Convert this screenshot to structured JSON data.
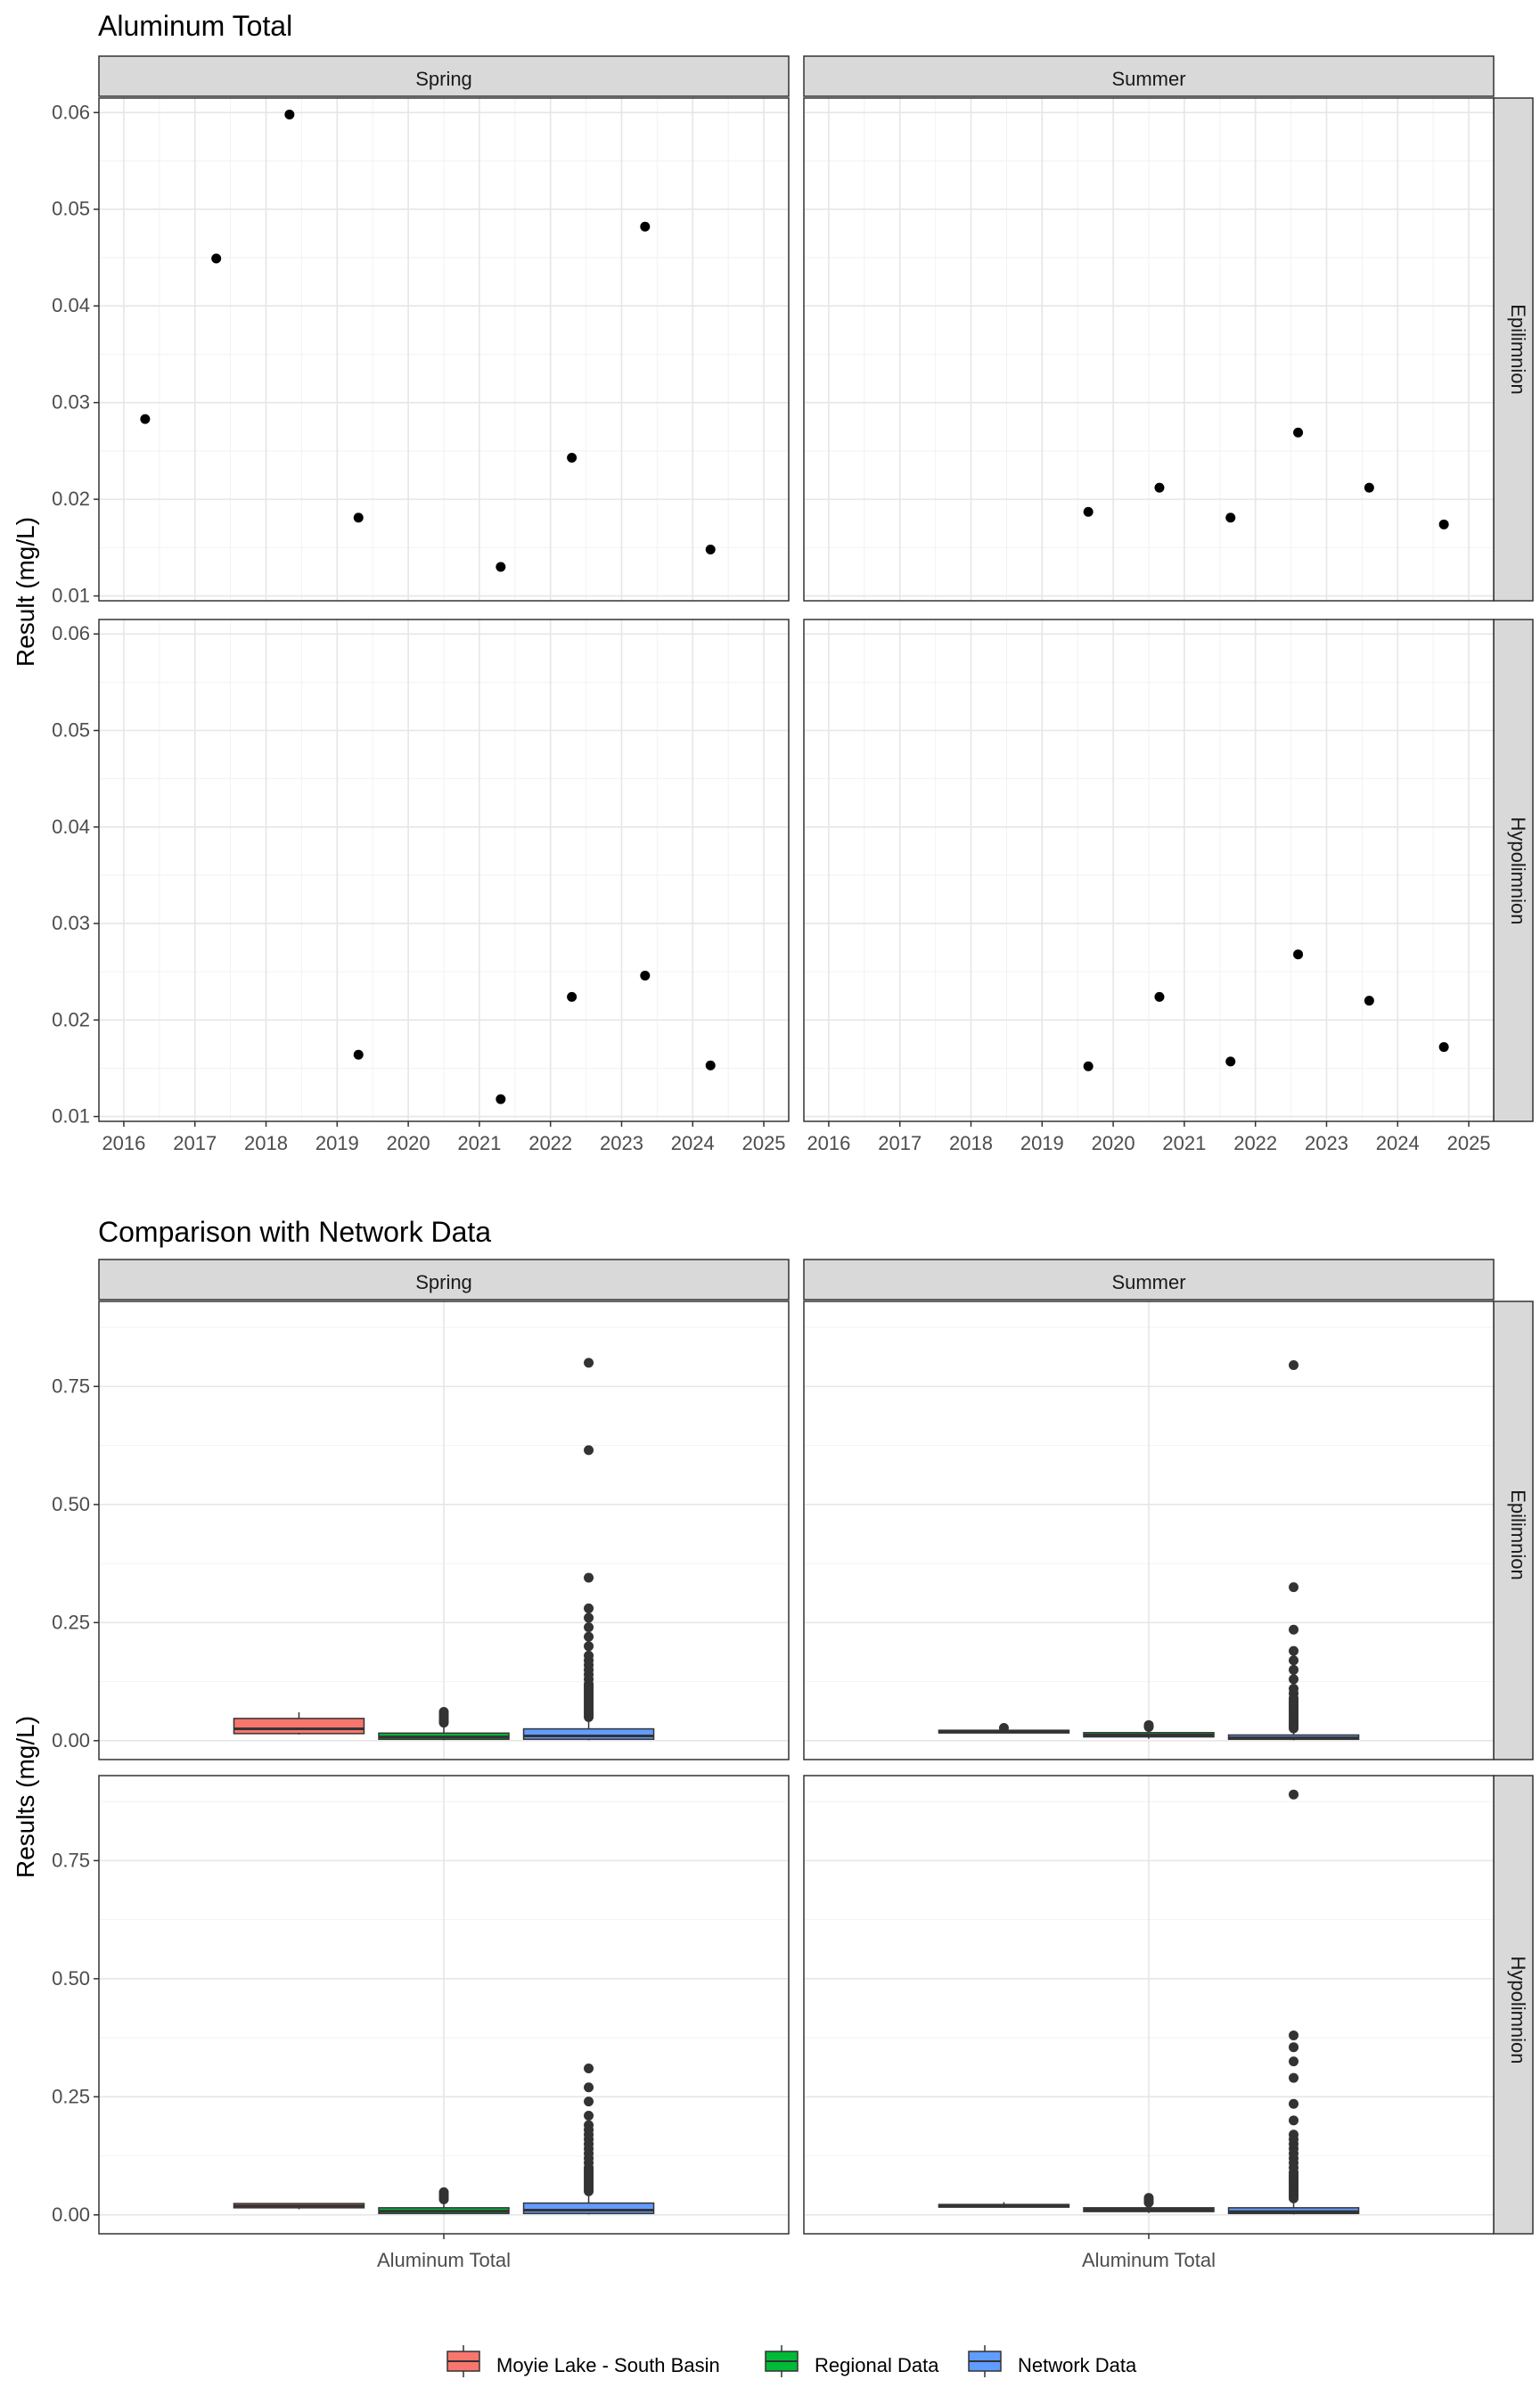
{
  "chart_data": [
    {
      "type": "scatter",
      "title": "Aluminum Total",
      "ylabel": "Result (mg/L)",
      "xlabel": "",
      "ylim": [
        0.0095,
        0.0615
      ],
      "xlim": [
        2015.65,
        2025.35
      ],
      "x_ticks": [
        "2016",
        "2017",
        "2018",
        "2019",
        "2020",
        "2021",
        "2022",
        "2023",
        "2024",
        "2025"
      ],
      "y_ticks": [
        "0.01",
        "0.02",
        "0.03",
        "0.04",
        "0.05",
        "0.06"
      ],
      "columns": [
        "Spring",
        "Summer"
      ],
      "rows": [
        "Epilimnion",
        "Hypolimnion"
      ],
      "grid": true,
      "panels": {
        "Spring": {
          "Epilimnion": [
            [
              2016.3,
              0.0283
            ],
            [
              2017.3,
              0.0449
            ],
            [
              2018.33,
              0.0598
            ],
            [
              2019.3,
              0.0181
            ],
            [
              2021.3,
              0.013
            ],
            [
              2022.3,
              0.0243
            ],
            [
              2023.33,
              0.0482
            ],
            [
              2024.25,
              0.0148
            ]
          ],
          "Hypolimnion": [
            [
              2019.3,
              0.0164
            ],
            [
              2021.3,
              0.0118
            ],
            [
              2022.3,
              0.0224
            ],
            [
              2023.33,
              0.0246
            ],
            [
              2024.25,
              0.0153
            ]
          ]
        },
        "Summer": {
          "Epilimnion": [
            [
              2019.65,
              0.0187
            ],
            [
              2020.65,
              0.0212
            ],
            [
              2021.65,
              0.0181
            ],
            [
              2022.6,
              0.0269
            ],
            [
              2023.6,
              0.0212
            ],
            [
              2024.65,
              0.0174
            ]
          ],
          "Hypolimnion": [
            [
              2019.65,
              0.0152
            ],
            [
              2020.65,
              0.0224
            ],
            [
              2021.65,
              0.0157
            ],
            [
              2022.6,
              0.0268
            ],
            [
              2023.6,
              0.022
            ],
            [
              2024.65,
              0.0172
            ]
          ]
        }
      }
    },
    {
      "type": "box",
      "title": "Comparison with Network Data",
      "ylabel": "Results (mg/L)",
      "category": "Aluminum Total",
      "ylim": [
        -0.04,
        0.93
      ],
      "y_ticks": [
        "0.00",
        "0.25",
        "0.50",
        "0.75"
      ],
      "columns": [
        "Spring",
        "Summer"
      ],
      "rows": [
        "Epilimnion",
        "Hypolimnion"
      ],
      "grid": true,
      "legend_position": "bottom",
      "series": [
        {
          "name": "Moyie Lake - South Basin",
          "color": "#F8766D"
        },
        {
          "name": "Regional Data",
          "color": "#00BA38"
        },
        {
          "name": "Network Data",
          "color": "#619CFF"
        }
      ],
      "panels": {
        "Spring": {
          "Epilimnion": [
            {
              "q1": 0.015,
              "median": 0.025,
              "q3": 0.047,
              "whisker_low": 0.013,
              "whisker_high": 0.06,
              "outliers": []
            },
            {
              "q1": 0.003,
              "median": 0.008,
              "q3": 0.016,
              "whisker_low": 0.001,
              "whisker_high": 0.035,
              "outliers": [
                0.038,
                0.042,
                0.047,
                0.052,
                0.056,
                0.061
              ]
            },
            {
              "q1": 0.003,
              "median": 0.01,
              "q3": 0.025,
              "whisker_low": 0.001,
              "whisker_high": 0.048,
              "outliers": [
                0.05,
                0.055,
                0.06,
                0.065,
                0.07,
                0.075,
                0.08,
                0.085,
                0.09,
                0.095,
                0.1,
                0.105,
                0.11,
                0.115,
                0.12,
                0.13,
                0.14,
                0.15,
                0.16,
                0.17,
                0.18,
                0.2,
                0.22,
                0.24,
                0.26,
                0.28,
                0.345,
                0.615,
                0.8
              ]
            }
          ],
          "Hypolimnion": [
            {
              "q1": 0.015,
              "median": 0.019,
              "q3": 0.024,
              "whisker_low": 0.012,
              "whisker_high": 0.025,
              "outliers": []
            },
            {
              "q1": 0.003,
              "median": 0.008,
              "q3": 0.015,
              "whisker_low": 0.001,
              "whisker_high": 0.03,
              "outliers": [
                0.033,
                0.038,
                0.043,
                0.048
              ]
            },
            {
              "q1": 0.003,
              "median": 0.01,
              "q3": 0.025,
              "whisker_low": 0.001,
              "whisker_high": 0.046,
              "outliers": [
                0.05,
                0.055,
                0.06,
                0.065,
                0.07,
                0.075,
                0.08,
                0.085,
                0.09,
                0.095,
                0.1,
                0.11,
                0.12,
                0.13,
                0.14,
                0.15,
                0.16,
                0.17,
                0.18,
                0.19,
                0.21,
                0.24,
                0.27,
                0.31
              ]
            }
          ]
        },
        "Summer": {
          "Epilimnion": [
            {
              "q1": 0.018,
              "median": 0.02,
              "q3": 0.022,
              "whisker_low": 0.017,
              "whisker_high": 0.024,
              "outliers": [
                0.027
              ]
            },
            {
              "q1": 0.008,
              "median": 0.012,
              "q3": 0.017,
              "whisker_low": 0.004,
              "whisker_high": 0.024,
              "outliers": [
                0.029,
                0.033
              ]
            },
            {
              "q1": 0.003,
              "median": 0.006,
              "q3": 0.012,
              "whisker_low": 0.001,
              "whisker_high": 0.022,
              "outliers": [
                0.026,
                0.03,
                0.035,
                0.04,
                0.045,
                0.05,
                0.055,
                0.06,
                0.065,
                0.07,
                0.075,
                0.08,
                0.085,
                0.09,
                0.1,
                0.11,
                0.13,
                0.15,
                0.17,
                0.19,
                0.235,
                0.325,
                0.795
              ]
            }
          ],
          "Hypolimnion": [
            {
              "q1": 0.018,
              "median": 0.02,
              "q3": 0.022,
              "whisker_low": 0.015,
              "whisker_high": 0.027,
              "outliers": []
            },
            {
              "q1": 0.007,
              "median": 0.011,
              "q3": 0.015,
              "whisker_low": 0.004,
              "whisker_high": 0.022,
              "outliers": [
                0.026,
                0.031,
                0.036
              ]
            },
            {
              "q1": 0.003,
              "median": 0.007,
              "q3": 0.015,
              "whisker_low": 0.001,
              "whisker_high": 0.03,
              "outliers": [
                0.035,
                0.04,
                0.045,
                0.05,
                0.055,
                0.06,
                0.065,
                0.07,
                0.075,
                0.08,
                0.085,
                0.09,
                0.1,
                0.11,
                0.12,
                0.13,
                0.14,
                0.15,
                0.16,
                0.17,
                0.2,
                0.235,
                0.29,
                0.325,
                0.355,
                0.38,
                0.89
              ]
            }
          ]
        }
      }
    }
  ]
}
